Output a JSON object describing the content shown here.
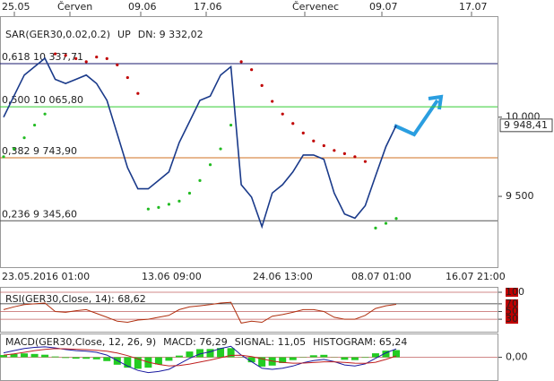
{
  "chart_data": [
    {
      "type": "line",
      "x_labels_top": [
        "25.05",
        "Červen",
        "09.06",
        "17.06",
        "Červenec",
        "09.07",
        "17.07"
      ],
      "x_labels_bottom": [
        "23.05.2016 01:00",
        "13.06 09:00",
        "24.06 13:00",
        "08.07 01:00",
        "16.07 21:00"
      ],
      "categories": [
        null,
        null,
        null,
        null,
        null,
        null,
        null,
        null,
        null,
        null,
        null,
        null,
        null,
        null,
        null,
        null,
        null,
        null,
        null,
        null,
        null,
        null,
        null,
        null,
        null,
        null,
        null,
        null,
        null,
        null,
        null,
        null,
        null,
        null,
        null,
        null,
        null,
        null,
        null
      ],
      "series": [
        {
          "name": "GER30",
          "color": "#1a3a8a",
          "values": [
            10000,
            10133,
            10266,
            10319,
            10372,
            10239,
            10213,
            10239,
            10266,
            10213,
            10106,
            9894,
            9681,
            9548,
            9548,
            9601,
            9654,
            9840,
            9973,
            10106,
            10133,
            10266,
            10319,
            9574,
            9495,
            9309,
            9521,
            9574,
            9654,
            9761,
            9761,
            9734,
            9521,
            9388,
            9362,
            9441,
            9628,
            9814,
            9948.41
          ]
        },
        {
          "name": "SAR(GER30,0.02,0.2)",
          "color": "#c00000",
          "style": "dots",
          "values": [
            9750,
            9800,
            9870,
            9950,
            10020,
            10400,
            10390,
            10370,
            10350,
            10380,
            10370,
            10330,
            10250,
            10150,
            9420,
            9430,
            9450,
            9470,
            9520,
            9600,
            9700,
            9800,
            9950,
            10350,
            10300,
            10200,
            10100,
            10020,
            9960,
            9900,
            9850,
            9820,
            9790,
            9770,
            9750,
            9720,
            9300,
            9330,
            9360
          ]
        }
      ],
      "up_label": "UP",
      "up_color": "#c00000",
      "dn_label": "DN: 9 332,02",
      "dn_color": "#22bb22",
      "levels": [
        {
          "label": "0,618 10 337,71",
          "value": 10337.71,
          "color": "#1a1a6e"
        },
        {
          "label": "0,500 10 065,80",
          "value": 10065.8,
          "color": "#33cc33"
        },
        {
          "label": "0,382 9 743,90",
          "value": 9743.9,
          "color": "#d07020"
        },
        {
          "label": "0,236 9 345,60",
          "value": 9345.6,
          "color": "#555555"
        }
      ],
      "last_price": {
        "value": 9948.41,
        "label": "9 948,41"
      },
      "ylim": [
        9053,
        10638
      ],
      "yticks": [
        {
          "value": 10000,
          "label": "10 000"
        },
        {
          "value": 9500,
          "label": "9 500"
        }
      ],
      "grid": false
    },
    {
      "type": "line",
      "categories": [
        null,
        null,
        null,
        null,
        null,
        null,
        null,
        null,
        null,
        null,
        null,
        null,
        null,
        null,
        null,
        null,
        null,
        null,
        null,
        null,
        null,
        null,
        null,
        null,
        null,
        null,
        null,
        null,
        null,
        null,
        null,
        null,
        null,
        null,
        null,
        null,
        null,
        null,
        null
      ],
      "series": [
        {
          "name": "RSI(GER30,Close, 14): 68,62",
          "color": "#b03010",
          "values": [
            55,
            62,
            68,
            70,
            72,
            50,
            48,
            52,
            55,
            45,
            35,
            25,
            22,
            28,
            30,
            35,
            40,
            55,
            62,
            65,
            68,
            72,
            74,
            20,
            25,
            22,
            38,
            42,
            48,
            55,
            55,
            50,
            35,
            30,
            30,
            40,
            58,
            65,
            68.62
          ]
        }
      ],
      "ylim": [
        0,
        100
      ],
      "yticks": [
        100,
        70,
        50,
        30
      ],
      "grid": true
    },
    {
      "type": "line",
      "title": "MACD(GER30,Close, 12, 26, 9)",
      "categories": [
        null,
        null,
        null,
        null,
        null,
        null,
        null,
        null,
        null,
        null,
        null,
        null,
        null,
        null,
        null,
        null,
        null,
        null,
        null,
        null,
        null,
        null,
        null,
        null,
        null,
        null,
        null,
        null,
        null,
        null,
        null,
        null,
        null,
        null,
        null,
        null,
        null,
        null,
        null
      ],
      "series": [
        {
          "name": "HISTOGRAM: 65,24",
          "color": "#22cc22",
          "style": "bars",
          "values": [
            20,
            30,
            35,
            30,
            23,
            7,
            -7,
            -13,
            -14,
            -19,
            -35,
            -68,
            -95,
            -105,
            -95,
            -65,
            -32,
            15,
            52,
            74,
            75,
            84,
            83,
            2,
            -46,
            -85,
            -76,
            -53,
            -26,
            3,
            18,
            22,
            2,
            -23,
            -26,
            -5,
            36,
            60,
            65.24
          ]
        },
        {
          "name": "MACD: 76,29",
          "color": "#1a1aa0",
          "values": [
            40,
            60,
            80,
            90,
            95,
            85,
            70,
            60,
            55,
            45,
            20,
            -30,
            -80,
            -120,
            -140,
            -130,
            -110,
            -60,
            -10,
            30,
            50,
            80,
            100,
            20,
            -40,
            -100,
            -110,
            -100,
            -80,
            -50,
            -30,
            -20,
            -40,
            -70,
            -80,
            -60,
            -10,
            40,
            76.29
          ]
        },
        {
          "name": "SIGNAL: 11,05",
          "color": "#c02020",
          "values": [
            20,
            30,
            45,
            60,
            72,
            78,
            77,
            73,
            69,
            64,
            55,
            38,
            15,
            -15,
            -45,
            -65,
            -78,
            -75,
            -62,
            -44,
            -25,
            -4,
            17,
            18,
            6,
            -15,
            -34,
            -47,
            -54,
            -53,
            -48,
            -42,
            -42,
            -47,
            -54,
            -55,
            -46,
            -20,
            11.05
          ]
        }
      ],
      "ylim": [
        -200,
        200
      ],
      "yticks": [
        {
          "value": 0,
          "label": "0,00"
        }
      ],
      "grid": true
    }
  ]
}
